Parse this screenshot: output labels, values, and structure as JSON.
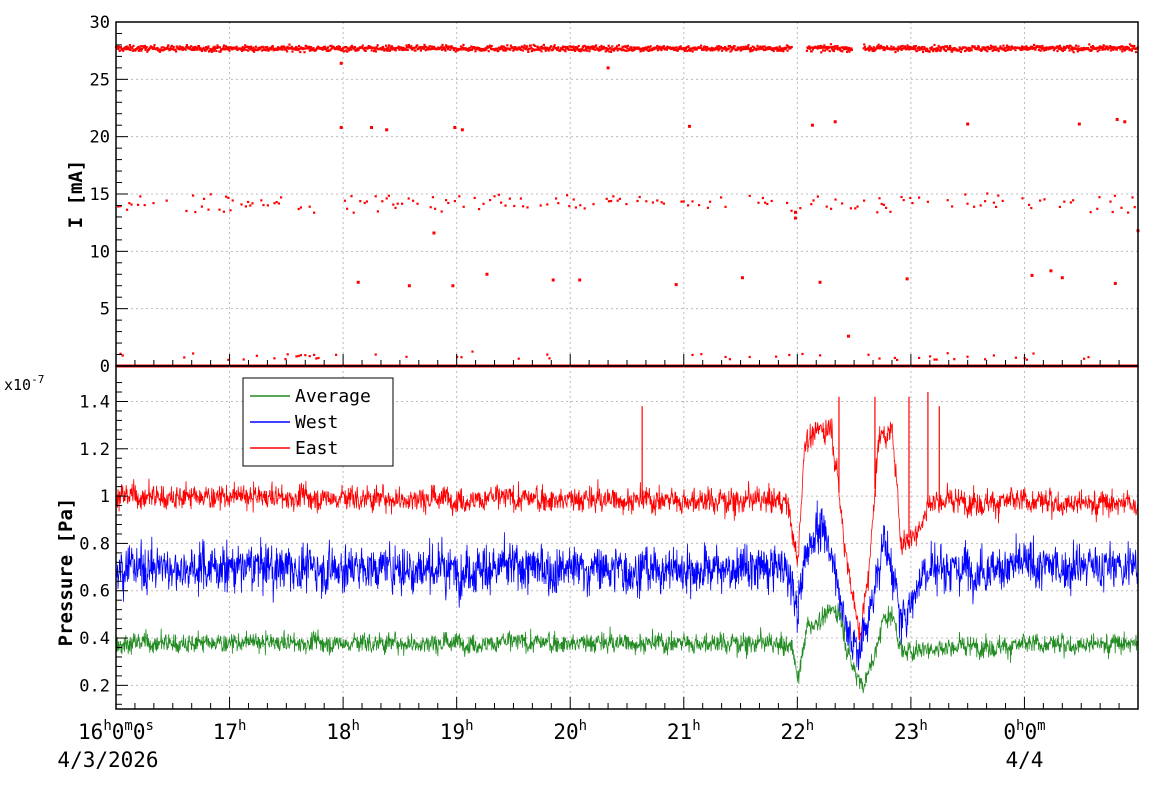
{
  "chart_data": [
    {
      "type": "scatter",
      "ylabel": "I [mA]",
      "ylim": [
        0,
        30
      ],
      "yticks": [
        0,
        5,
        10,
        15,
        20,
        25,
        30
      ],
      "xlim": [
        "2026-04-03 16:00",
        "2026-04-04 01:00"
      ],
      "grid": true,
      "series": [
        {
          "color": "#ff0000",
          "bands": [
            {
              "level": 27.7,
              "spread": 0.5,
              "x_ranges": [
                [
                  "2026-04-03 16:00",
                  "2026-04-03 21:57"
                ],
                [
                  "2026-04-03 22:05",
                  "2026-04-03 22:29"
                ],
                [
                  "2026-04-03 22:35",
                  "2026-04-04 01:00"
                ]
              ]
            },
            {
              "level": 14.2,
              "spread": 0.8,
              "x_ranges": [
                [
                  "2026-04-03 16:00",
                  "2026-04-04 01:00"
                ]
              ]
            },
            {
              "level": 0.0,
              "spread": 0.0,
              "x_ranges": [
                [
                  "2026-04-03 16:00",
                  "2026-04-04 01:00"
                ]
              ]
            },
            {
              "level": 0.8,
              "spread": 0.5,
              "x_ranges": [
                [
                  "2026-04-03 16:00",
                  "2026-04-04 01:00"
                ]
              ]
            }
          ],
          "points": [
            {
              "x": "2026-04-03 17:59",
              "y": 20.8
            },
            {
              "x": "2026-04-03 18:15",
              "y": 20.8
            },
            {
              "x": "2026-04-03 18:23",
              "y": 20.6
            },
            {
              "x": "2026-04-03 18:59",
              "y": 20.8
            },
            {
              "x": "2026-04-03 19:03",
              "y": 20.6
            },
            {
              "x": "2026-04-03 21:03",
              "y": 20.9
            },
            {
              "x": "2026-04-03 22:08",
              "y": 21.0
            },
            {
              "x": "2026-04-03 22:20",
              "y": 21.3
            },
            {
              "x": "2026-04-03 23:30",
              "y": 21.1
            },
            {
              "x": "2026-04-04 00:29",
              "y": 21.1
            },
            {
              "x": "2026-04-04 00:49",
              "y": 21.5
            },
            {
              "x": "2026-04-04 00:53",
              "y": 21.3
            },
            {
              "x": "2026-04-03 18:08",
              "y": 7.3
            },
            {
              "x": "2026-04-03 18:35",
              "y": 7.0
            },
            {
              "x": "2026-04-03 18:58",
              "y": 7.0
            },
            {
              "x": "2026-04-03 19:16",
              "y": 8.0
            },
            {
              "x": "2026-04-03 19:51",
              "y": 7.5
            },
            {
              "x": "2026-04-03 20:05",
              "y": 7.5
            },
            {
              "x": "2026-04-03 20:56",
              "y": 7.1
            },
            {
              "x": "2026-04-03 21:31",
              "y": 7.7
            },
            {
              "x": "2026-04-03 22:12",
              "y": 7.3
            },
            {
              "x": "2026-04-03 22:58",
              "y": 7.6
            },
            {
              "x": "2026-04-04 00:04",
              "y": 7.9
            },
            {
              "x": "2026-04-04 00:14",
              "y": 8.3
            },
            {
              "x": "2026-04-04 00:20",
              "y": 7.7
            },
            {
              "x": "2026-04-04 00:48",
              "y": 7.2
            },
            {
              "x": "2026-04-03 18:48",
              "y": 11.6
            },
            {
              "x": "2026-04-04 01:00",
              "y": 11.8
            },
            {
              "x": "2026-04-03 22:27",
              "y": 2.6
            },
            {
              "x": "2026-04-03 21:59",
              "y": 12.9
            },
            {
              "x": "2026-04-03 21:59",
              "y": 13.4
            },
            {
              "x": "2026-04-03 20:20",
              "y": 26.0
            },
            {
              "x": "2026-04-03 17:59",
              "y": 26.4
            }
          ]
        }
      ]
    },
    {
      "type": "line",
      "ylabel": "Pressure [Pa]",
      "y_multiplier": "x10",
      "y_exponent": "-7",
      "ylim": [
        0.1,
        1.55
      ],
      "yticks": [
        0.2,
        0.4,
        0.6,
        0.8,
        1,
        1.2,
        1.4
      ],
      "xlim": [
        "2026-04-03 16:00",
        "2026-04-04 01:00"
      ],
      "grid": true,
      "legend": "top-left",
      "x_tick_labels": [
        {
          "time": "2026-04-03 16:00",
          "hh": "16",
          "suffix1": "0",
          "suffix2": "0",
          "date": "4/3/2026"
        },
        {
          "time": "2026-04-03 17:00",
          "hh": "17"
        },
        {
          "time": "2026-04-03 18:00",
          "hh": "18"
        },
        {
          "time": "2026-04-03 19:00",
          "hh": "19"
        },
        {
          "time": "2026-04-03 20:00",
          "hh": "20"
        },
        {
          "time": "2026-04-03 21:00",
          "hh": "21"
        },
        {
          "time": "2026-04-03 22:00",
          "hh": "22"
        },
        {
          "time": "2026-04-03 23:00",
          "hh": "23"
        },
        {
          "time": "2026-04-04 00:00",
          "hh": "0",
          "suffix1": "0",
          "date": "4/4"
        }
      ],
      "series": [
        {
          "name": "Average",
          "color": "#228b22",
          "baseline": [
            [
              "2026-04-03 16:00",
              0.38
            ],
            [
              "2026-04-03 21:40",
              0.38
            ],
            [
              "2026-04-03 21:58",
              0.36
            ],
            [
              "2026-04-03 22:00",
              0.22
            ],
            [
              "2026-04-03 22:05",
              0.44
            ],
            [
              "2026-04-03 22:15",
              0.5
            ],
            [
              "2026-04-03 22:22",
              0.52
            ],
            [
              "2026-04-03 22:28",
              0.3
            ],
            [
              "2026-04-03 22:35",
              0.2
            ],
            [
              "2026-04-03 22:42",
              0.35
            ],
            [
              "2026-04-03 22:45",
              0.48
            ],
            [
              "2026-04-03 22:50",
              0.5
            ],
            [
              "2026-04-03 22:56",
              0.33
            ],
            [
              "2026-04-03 23:05",
              0.36
            ],
            [
              "2026-04-04 01:00",
              0.38
            ]
          ],
          "noise": 0.04
        },
        {
          "name": "West",
          "color": "#0000ff",
          "baseline": [
            [
              "2026-04-03 16:00",
              0.7
            ],
            [
              "2026-04-03 21:55",
              0.69
            ],
            [
              "2026-04-03 22:00",
              0.5
            ],
            [
              "2026-04-03 22:04",
              0.74
            ],
            [
              "2026-04-03 22:10",
              0.88
            ],
            [
              "2026-04-03 22:20",
              0.72
            ],
            [
              "2026-04-03 22:26",
              0.42
            ],
            [
              "2026-04-03 22:33",
              0.36
            ],
            [
              "2026-04-03 22:40",
              0.55
            ],
            [
              "2026-04-03 22:45",
              0.82
            ],
            [
              "2026-04-03 22:50",
              0.7
            ],
            [
              "2026-04-03 22:55",
              0.45
            ],
            [
              "2026-04-03 23:03",
              0.62
            ],
            [
              "2026-04-03 23:08",
              0.7
            ],
            [
              "2026-04-04 01:00",
              0.7
            ]
          ],
          "noise": 0.09
        },
        {
          "name": "East",
          "color": "#ff0000",
          "baseline": [
            [
              "2026-04-03 16:00",
              1.0
            ],
            [
              "2026-04-03 21:55",
              0.98
            ],
            [
              "2026-04-03 22:00",
              0.7
            ],
            [
              "2026-04-03 22:04",
              1.24
            ],
            [
              "2026-04-03 22:18",
              1.3
            ],
            [
              "2026-04-03 22:25",
              0.8
            ],
            [
              "2026-04-03 22:33",
              0.4
            ],
            [
              "2026-04-03 22:38",
              0.7
            ],
            [
              "2026-04-03 22:43",
              1.25
            ],
            [
              "2026-04-03 22:50",
              1.28
            ],
            [
              "2026-04-03 22:55",
              0.8
            ],
            [
              "2026-04-03 23:03",
              0.85
            ],
            [
              "2026-04-03 23:10",
              0.98
            ],
            [
              "2026-04-04 01:00",
              0.97
            ]
          ],
          "noise": 0.05,
          "spikes": [
            {
              "x": "2026-04-03 20:38",
              "y": 1.38
            },
            {
              "x": "2026-04-03 22:22",
              "y": 1.42
            },
            {
              "x": "2026-04-03 22:41",
              "y": 1.42
            },
            {
              "x": "2026-04-03 22:59",
              "y": 1.42
            },
            {
              "x": "2026-04-03 23:09",
              "y": 1.44
            },
            {
              "x": "2026-04-03 23:15",
              "y": 1.38
            }
          ]
        }
      ]
    }
  ]
}
